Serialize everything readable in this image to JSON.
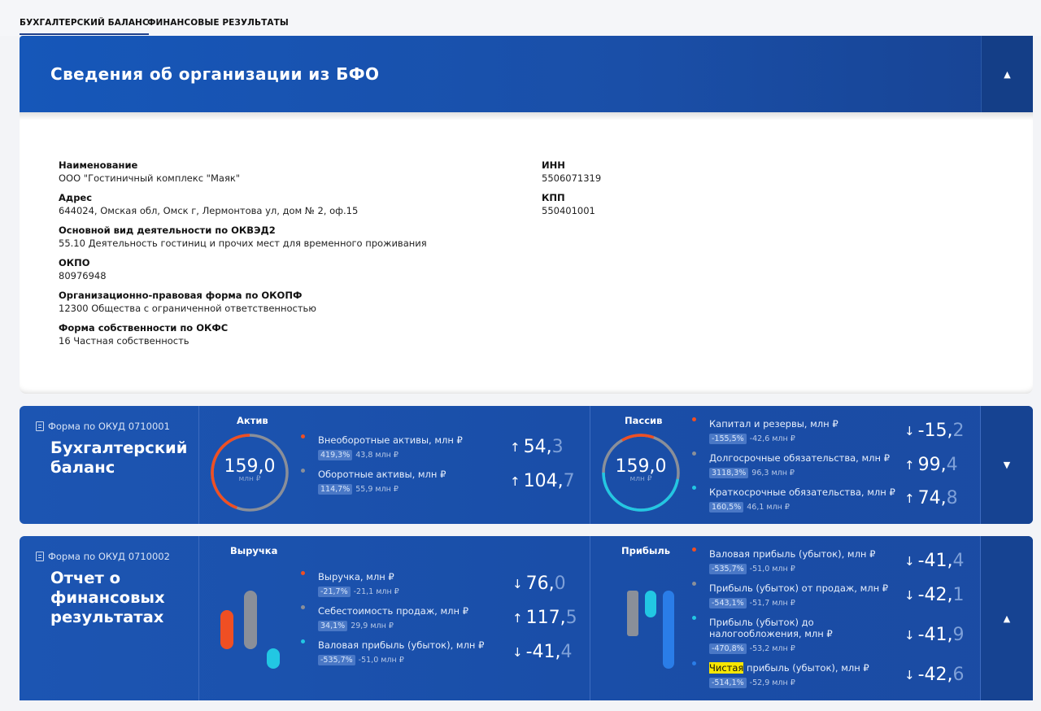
{
  "tabs": [
    {
      "label": "БУХГАЛТЕРСКИЙ БАЛАНС"
    },
    {
      "label": "ФИНАНСОВЫЕ РЕЗУЛЬТАТЫ"
    }
  ],
  "header": {
    "title": "Сведения об организации из БФО"
  },
  "org": {
    "name_label": "Наименование",
    "name": "ООО \"Гостиничный комплекс \"Маяк\"",
    "address_label": "Адрес",
    "address": "644024, Омская обл, Омск г, Лермонтова ул, дом № 2, оф.15",
    "okved_label": "Основной вид деятельности по ОКВЭД2",
    "okved": "55.10 Деятельность гостиниц и прочих мест для временного проживания",
    "okpo_label": "ОКПО",
    "okpo": "80976948",
    "okopf_label": "Организационно-правовая форма по ОКОПФ",
    "okopf": "12300 Общества с ограниченной ответственностью",
    "okfs_label": "Форма собственности по ОКФС",
    "okfs": "16 Частная собственность",
    "inn_label": "ИНН",
    "inn": "5506071319",
    "kpp_label": "КПП",
    "kpp": "550401001"
  },
  "balance": {
    "okud": "Форма по ОКУД 0710001",
    "title_l1": "Бухгалтерский",
    "title_l2": "баланс",
    "assets": {
      "title": "Актив",
      "total": "159,0",
      "unit": "млн ₽",
      "rows": [
        {
          "name": "Внеоборотные активы, млн ₽",
          "pct": "419,3%",
          "delta": "43,8 млн ₽",
          "arrow": "↑",
          "int": "54,",
          "dec": "3",
          "color": "#ef4f23"
        },
        {
          "name": "Оборотные активы, млн ₽",
          "pct": "114,7%",
          "delta": "55,9 млн ₽",
          "arrow": "↑",
          "int": "104,",
          "dec": "7",
          "color": "#8a8f99"
        }
      ]
    },
    "liabilities": {
      "title": "Пассив",
      "total": "159,0",
      "unit": "млн ₽",
      "rows": [
        {
          "name": "Капитал и резервы, млн ₽",
          "pct": "-155,5%",
          "delta": "-42,6 млн ₽",
          "arrow": "↓",
          "int": "-15,",
          "dec": "2",
          "color": "#ef4f23"
        },
        {
          "name": "Долгосрочные обязательства, млн ₽",
          "pct": "3118,3%",
          "delta": "96,3 млн ₽",
          "arrow": "↑",
          "int": "99,",
          "dec": "4",
          "color": "#8a8f99"
        },
        {
          "name": "Краткосрочные обязательства, млн ₽",
          "pct": "160,5%",
          "delta": "46,1 млн ₽",
          "arrow": "↑",
          "int": "74,",
          "dec": "8",
          "color": "#22c7e3"
        }
      ]
    }
  },
  "results": {
    "okud": "Форма по ОКУД 0710002",
    "title_l1": "Отчет о",
    "title_l2": "финансовых",
    "title_l3": "результатах",
    "revenue": {
      "title": "Выручка",
      "rows": [
        {
          "name": "Выручка, млн ₽",
          "pct": "-21,7%",
          "delta": "-21,1 млн ₽",
          "arrow": "↓",
          "int": "76,",
          "dec": "0",
          "color": "#ef4f23"
        },
        {
          "name": "Себестоимость продаж, млн ₽",
          "pct": "34,1%",
          "delta": "29,9 млн ₽",
          "arrow": "↑",
          "int": "117,",
          "dec": "5",
          "color": "#8a8f99"
        },
        {
          "name": "Валовая прибыль (убыток), млн ₽",
          "pct": "-535,7%",
          "delta": "-51,0 млн ₽",
          "arrow": "↓",
          "int": "-41,",
          "dec": "4",
          "color": "#22c7e3"
        }
      ]
    },
    "profit": {
      "title": "Прибыль",
      "rows": [
        {
          "name": "Валовая прибыль (убыток), млн ₽",
          "pct": "-535,7%",
          "delta": "-51,0 млн ₽",
          "arrow": "↓",
          "int": "-41,",
          "dec": "4",
          "color": "#ef4f23"
        },
        {
          "name": "Прибыль (убыток) от продаж, млн ₽",
          "pct": "-543,1%",
          "delta": "-51,7 млн ₽",
          "arrow": "↓",
          "int": "-42,",
          "dec": "1",
          "color": "#8a8f99"
        },
        {
          "name": "Прибыль (убыток) до налогообложения, млн ₽",
          "pct": "-470,8%",
          "delta": "-53,2 млн ₽",
          "arrow": "↓",
          "int": "-41,",
          "dec": "9",
          "color": "#22c7e3"
        },
        {
          "name_hl": "Чистая",
          "name_rest": " прибыль (убыток), млн ₽",
          "pct": "-514,1%",
          "delta": "-52,9 млн ₽",
          "arrow": "↓",
          "int": "-42,",
          "dec": "6",
          "color": "#2a7de8"
        }
      ]
    }
  },
  "icons": {
    "collapse": "caret-up-icon",
    "expand": "caret-down-icon",
    "document": "document-icon"
  }
}
